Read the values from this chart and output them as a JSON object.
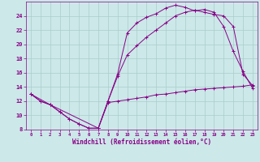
{
  "background_color": "#cce8e8",
  "line_color": "#880088",
  "grid_color": "#aacccc",
  "xlabel": "Windchill (Refroidissement éolien,°C)",
  "xlim": [
    -0.5,
    23.5
  ],
  "ylim": [
    8,
    26
  ],
  "yticks": [
    8,
    10,
    12,
    14,
    16,
    18,
    20,
    22,
    24
  ],
  "xticks": [
    0,
    1,
    2,
    3,
    4,
    5,
    6,
    7,
    8,
    9,
    10,
    11,
    12,
    13,
    14,
    15,
    16,
    17,
    18,
    19,
    20,
    21,
    22,
    23
  ],
  "series": [
    {
      "x": [
        0,
        1,
        2,
        3,
        4,
        5,
        6,
        7,
        8,
        9,
        10,
        11,
        12,
        13,
        14,
        15,
        16,
        17,
        18,
        19,
        20,
        21,
        22,
        23
      ],
      "y": [
        13,
        12,
        11.5,
        10.5,
        9.5,
        8.8,
        8.2,
        8.2,
        11.8,
        12.0,
        12.2,
        12.4,
        12.6,
        12.9,
        13.0,
        13.2,
        13.4,
        13.6,
        13.7,
        13.8,
        13.9,
        14.0,
        14.1,
        14.3
      ]
    },
    {
      "x": [
        0,
        1,
        2,
        3,
        4,
        5,
        6,
        7,
        8,
        9,
        10,
        11,
        12,
        13,
        14,
        15,
        16,
        17,
        18,
        19,
        20,
        21,
        22,
        23
      ],
      "y": [
        13,
        12,
        11.5,
        10.5,
        9.5,
        8.8,
        8.2,
        8.2,
        12.0,
        15.8,
        21.6,
        23.0,
        23.8,
        24.3,
        25.1,
        25.5,
        25.2,
        24.7,
        24.9,
        24.5,
        22.5,
        19.0,
        16.2,
        13.8
      ]
    },
    {
      "x": [
        0,
        2,
        7,
        8,
        9,
        10,
        11,
        12,
        13,
        14,
        15,
        16,
        17,
        18,
        19,
        20,
        21,
        22,
        23
      ],
      "y": [
        13,
        11.5,
        8.2,
        12.0,
        15.5,
        18.5,
        19.8,
        21.0,
        22.0,
        23.0,
        24.0,
        24.5,
        24.8,
        24.5,
        24.2,
        24.0,
        22.5,
        15.8,
        14.2
      ]
    }
  ]
}
